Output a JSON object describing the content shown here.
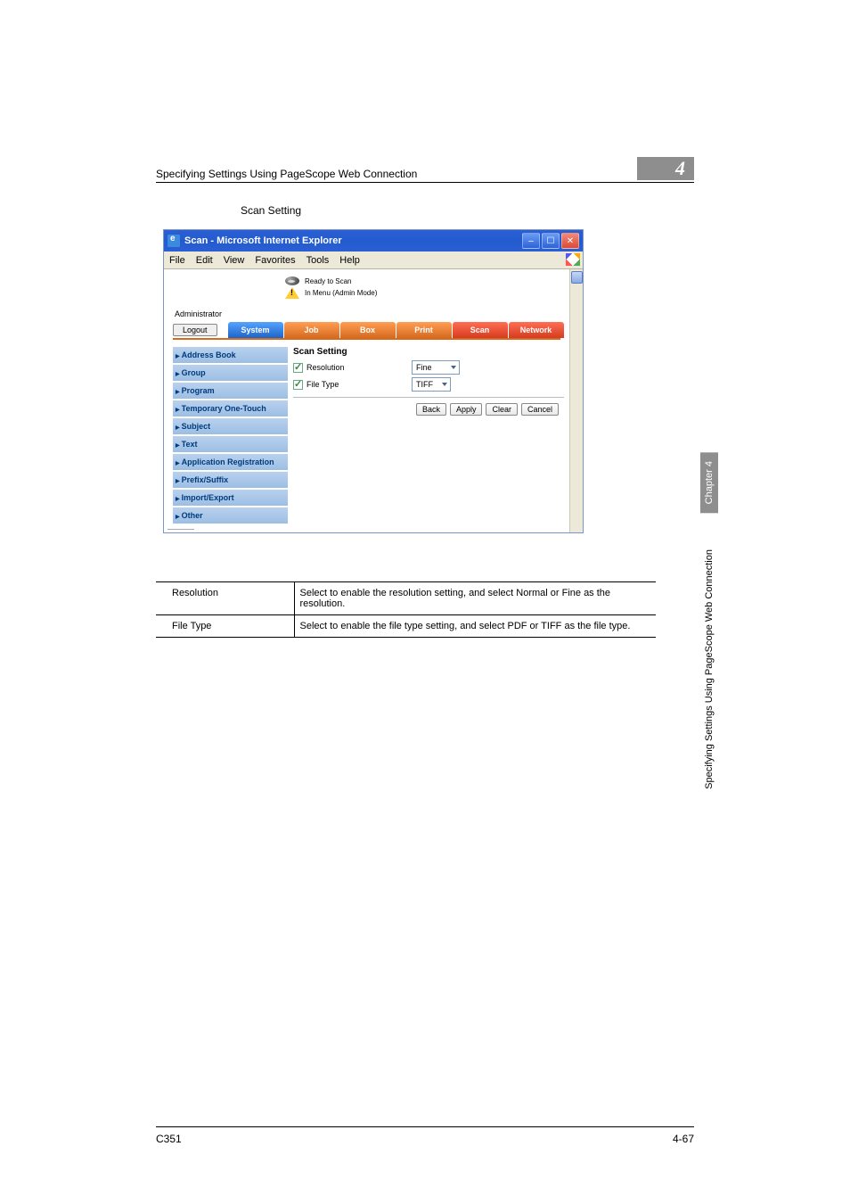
{
  "header": {
    "title": "Specifying Settings Using PageScope Web Connection",
    "chapter_badge": "4"
  },
  "section": {
    "title": "Scan Setting"
  },
  "browser": {
    "window_title": "Scan - Microsoft Internet Explorer",
    "menu": {
      "file": "File",
      "edit": "Edit",
      "view": "View",
      "favorites": "Favorites",
      "tools": "Tools",
      "help": "Help"
    },
    "status": {
      "line1": "Ready to Scan",
      "line2": "In Menu (Admin Mode)"
    },
    "admin_label": "Administrator",
    "logout": "Logout",
    "tabs": {
      "system": "System",
      "job": "Job",
      "box": "Box",
      "print": "Print",
      "scan": "Scan",
      "network": "Network"
    },
    "sidebar": [
      "Address Book",
      "Group",
      "Program",
      "Temporary One-Touch",
      "Subject",
      "Text",
      "Application Registration",
      "Prefix/Suffix",
      "Import/Export",
      "Other"
    ],
    "pane": {
      "title": "Scan Setting",
      "resolution_label": "Resolution",
      "filetype_label": "File Type",
      "resolution_value": "Fine",
      "filetype_value": "TIFF",
      "buttons": {
        "back": "Back",
        "apply": "Apply",
        "clear": "Clear",
        "cancel": "Cancel"
      }
    }
  },
  "desc_table": {
    "rows": [
      {
        "k": "Resolution",
        "v": "Select to enable the resolution setting, and select Normal or Fine as the resolution."
      },
      {
        "k": "File Type",
        "v": "Select to enable the file type setting, and select PDF or TIFF as the file type."
      }
    ]
  },
  "side": {
    "chapter": "Chapter 4",
    "section": "Specifying Settings Using PageScope Web Connection"
  },
  "footer": {
    "left": "C351",
    "right": "4-67"
  },
  "colors": {
    "badge_bg": "#8e8e8e",
    "tab_blue1": "#55a3ff",
    "tab_blue2": "#1e64c8",
    "tab_orange1": "#ff9e55",
    "tab_orange2": "#d66a1e",
    "tab_red1": "#ff6e55",
    "tab_red2": "#d63c1e",
    "sidebar_bg1": "#b9d1ee",
    "sidebar_bg2": "#9cbee4",
    "sidebar_text": "#003b7c"
  }
}
